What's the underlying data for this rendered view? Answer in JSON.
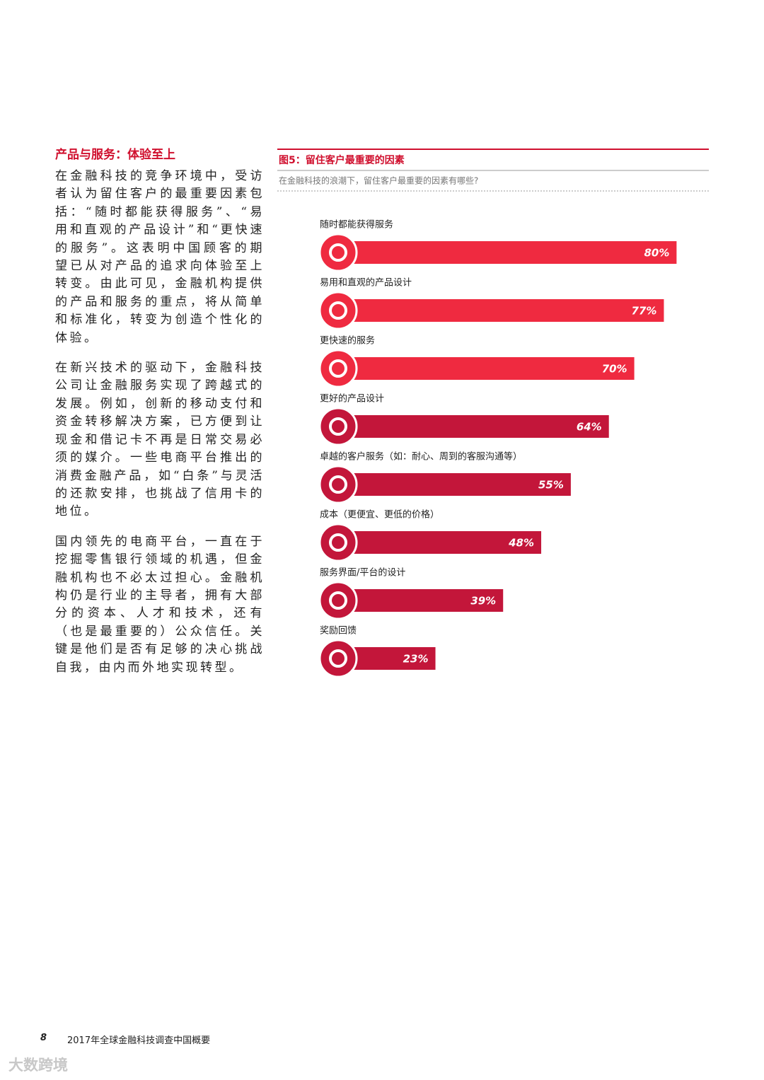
{
  "article": {
    "heading": "产品与服务：体验至上",
    "paragraphs": [
      "在金融科技的竞争环境中，受访者认为留住客户的最重要因素包括：“随时都能获得服务”、“易用和直观的产品设计”和“更快速的服务”。这表明中国顾客的期望已从对产品的追求向体验至上转变。由此可见，金融机构提供的产品和服务的重点，将从简单和标准化，转变为创造个性化的体验。",
      "在新兴技术的驱动下，金融科技公司让金融服务实现了跨越式的发展。例如，创新的移动支付和资金转移解决方案，已方便到让现金和借记卡不再是日常交易必须的媒介。一些电商平台推出的消费金融产品，如“白条”与灵活的还款安排，也挑战了信用卡的地位。",
      "国内领先的电商平台，一直在于挖掘零售银行领域的机遇，但金融机构也不必太过担心。金融机构仍是行业的主导者，拥有大部分的资本、人才和技术，还有（也是最重要的）公众信任。关键是他们是否有足够的决心挑战自我，由内而外地实现转型。"
    ]
  },
  "chart_data": {
    "type": "bar",
    "orientation": "horizontal",
    "title": "图5：留住客户最重要的因素",
    "subtitle": "在金融科技的浪潮下，留住客户最重要的因素有哪些?",
    "categories": [
      "随时都能获得服务",
      "易用和直观的产品设计",
      "更快速的服务",
      "更好的产品设计",
      "卓越的客户服务（如：耐心、周到的客服沟通等）",
      "成本（更便宜、更低的价格）",
      "服务界面/平台的设计",
      "奖励回馈"
    ],
    "values": [
      80,
      77,
      70,
      64,
      55,
      48,
      39,
      23
    ],
    "value_labels": [
      "80%",
      "77%",
      "70%",
      "64%",
      "55%",
      "48%",
      "39%",
      "23%"
    ],
    "colors": [
      "#ef2a40",
      "#ef2a40",
      "#ef2a40",
      "#c3163a",
      "#c3163a",
      "#c3163a",
      "#c3163a",
      "#c3163a"
    ]
  },
  "footer": {
    "page_number": "8",
    "text": "2017年全球金融科技调查中国概要"
  },
  "watermark": "大数跨境"
}
